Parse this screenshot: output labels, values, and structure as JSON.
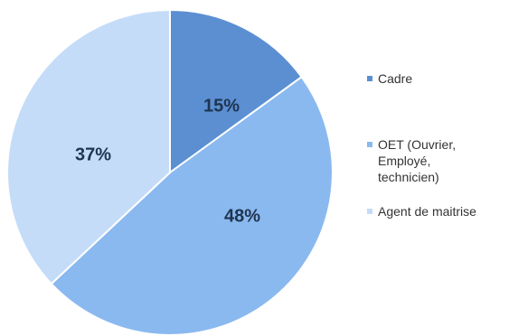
{
  "chart_data": {
    "type": "pie",
    "slices": [
      {
        "label": "Cadre",
        "value": 15,
        "display": "15%",
        "color": "#5b8fd2"
      },
      {
        "label": "OET (Ouvrier,\nEmployé,\ntechnicien)",
        "value": 48,
        "display": "48%",
        "color": "#8ab9f0"
      },
      {
        "label": "Agent de maitrise",
        "value": 37,
        "display": "37%",
        "color": "#c4dcf8"
      }
    ],
    "start_angle_deg": 0,
    "direction": "clockwise",
    "legend_position": "right"
  }
}
